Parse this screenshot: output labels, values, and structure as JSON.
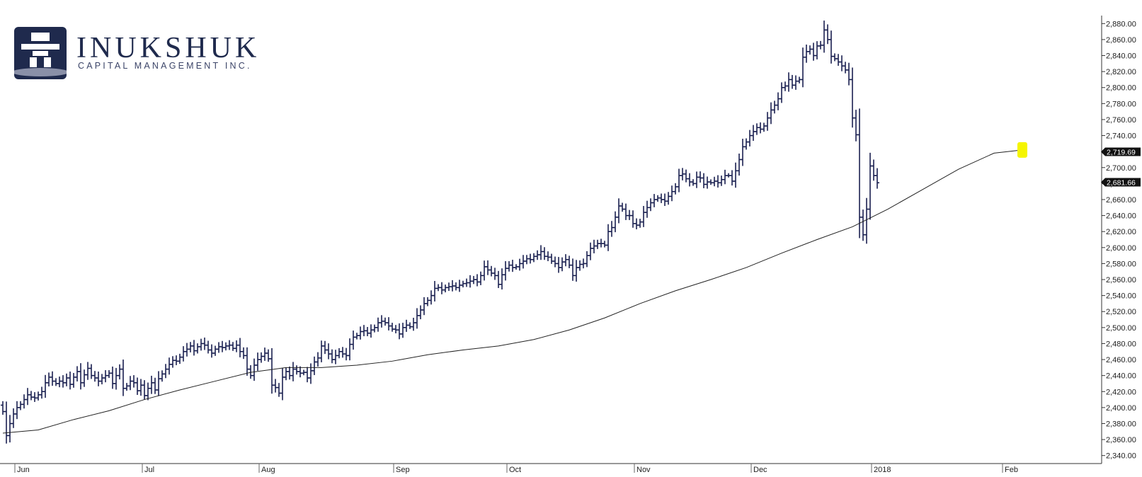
{
  "logo": {
    "name": "INUKSHUK",
    "tagline": "CAPITAL MANAGEMENT INC.",
    "brand_color": "#1f2a4d",
    "icon": "inukshuk-icon"
  },
  "chart_data": {
    "type": "ohlc",
    "title": "",
    "xlabel": "",
    "ylabel": "",
    "ylim": [
      2330,
      2890
    ],
    "y_ticks": [
      2340,
      2360,
      2380,
      2400,
      2420,
      2440,
      2460,
      2480,
      2500,
      2520,
      2540,
      2560,
      2580,
      2600,
      2620,
      2640,
      2660,
      2680,
      2700,
      2720,
      2740,
      2760,
      2780,
      2800,
      2820,
      2840,
      2860,
      2880
    ],
    "y_tick_labels": [
      "2,340.00",
      "2,360.00",
      "2,380.00",
      "2,400.00",
      "2,420.00",
      "2,440.00",
      "2,460.00",
      "2,480.00",
      "2,500.00",
      "2,520.00",
      "2,540.00",
      "2,560.00",
      "2,580.00",
      "2,600.00",
      "2,620.00",
      "2,640.00",
      "2,660.00",
      "2,680.00",
      "2,700.00",
      "2,720.00",
      "2,740.00",
      "2,760.00",
      "2,780.00",
      "2,800.00",
      "2,820.00",
      "2,840.00",
      "2,860.00",
      "2,880.00"
    ],
    "x_labels": [
      {
        "label": "Jun",
        "index": 5
      },
      {
        "label": "Jul",
        "index": 41
      },
      {
        "label": "Aug",
        "index": 74
      },
      {
        "label": "Sep",
        "index": 112
      },
      {
        "label": "Oct",
        "index": 144
      },
      {
        "label": "Nov",
        "index": 180
      },
      {
        "label": "Dec",
        "index": 213
      },
      {
        "label": "2018",
        "index": 247
      },
      {
        "label": "Feb",
        "index": 284
      }
    ],
    "last_values": [
      {
        "label": "2,719.69",
        "value": 2719.69
      },
      {
        "label": "2,681.66",
        "value": 2681.66
      }
    ],
    "bar_color": "#1a2050",
    "ma_color": "#222222",
    "highlight_color": "#f5f500",
    "grid": false,
    "closes": [
      2395,
      2365,
      2380,
      2392,
      2400,
      2404,
      2410,
      2416,
      2413,
      2412,
      2416,
      2420,
      2431,
      2438,
      2433,
      2430,
      2433,
      2431,
      2437,
      2429,
      2438,
      2445,
      2431,
      2441,
      2449,
      2440,
      2437,
      2433,
      2437,
      2440,
      2443,
      2430,
      2440,
      2448,
      2424,
      2427,
      2433,
      2431,
      2421,
      2428,
      2415,
      2424,
      2431,
      2422,
      2436,
      2442,
      2448,
      2454,
      2459,
      2458,
      2463,
      2470,
      2473,
      2477,
      2471,
      2476,
      2480,
      2478,
      2472,
      2468,
      2473,
      2476,
      2475,
      2477,
      2478,
      2474,
      2478,
      2470,
      2465,
      2448,
      2440,
      2453,
      2460,
      2464,
      2468,
      2461,
      2428,
      2425,
      2418,
      2438,
      2445,
      2440,
      2448,
      2445,
      2443,
      2444,
      2437,
      2446,
      2457,
      2462,
      2477,
      2472,
      2467,
      2460,
      2465,
      2470,
      2467,
      2465,
      2479,
      2488,
      2490,
      2495,
      2496,
      2493,
      2497,
      2500,
      2506,
      2508,
      2506,
      2502,
      2498,
      2497,
      2492,
      2500,
      2503,
      2501,
      2506,
      2515,
      2522,
      2530,
      2534,
      2540,
      2549,
      2550,
      2547,
      2550,
      2551,
      2552,
      2550,
      2553,
      2555,
      2556,
      2558,
      2560,
      2557,
      2565,
      2576,
      2572,
      2568,
      2565,
      2554,
      2566,
      2574,
      2578,
      2575,
      2576,
      2580,
      2583,
      2586,
      2585,
      2589,
      2591,
      2595,
      2589,
      2588,
      2583,
      2580,
      2575,
      2582,
      2585,
      2578,
      2565,
      2575,
      2579,
      2580,
      2590,
      2599,
      2602,
      2605,
      2605,
      2603,
      2620,
      2625,
      2638,
      2652,
      2648,
      2640,
      2640,
      2630,
      2628,
      2632,
      2644,
      2650,
      2656,
      2660,
      2662,
      2660,
      2658,
      2664,
      2670,
      2676,
      2690,
      2692,
      2686,
      2682,
      2680,
      2688,
      2687,
      2679,
      2682,
      2681,
      2683,
      2681,
      2685,
      2690,
      2690,
      2683,
      2696,
      2710,
      2726,
      2732,
      2740,
      2745,
      2750,
      2748,
      2752,
      2762,
      2772,
      2778,
      2786,
      2800,
      2802,
      2810,
      2803,
      2808,
      2810,
      2838,
      2845,
      2848,
      2840,
      2852,
      2853,
      2872,
      2860,
      2839,
      2836,
      2832,
      2827,
      2822,
      2810,
      2762,
      2741,
      2638,
      2616,
      2648,
      2702,
      2690,
      2681
    ],
    "moving_average": [
      {
        "index": 0,
        "value": 2368
      },
      {
        "index": 10,
        "value": 2372
      },
      {
        "index": 20,
        "value": 2385
      },
      {
        "index": 30,
        "value": 2396
      },
      {
        "index": 40,
        "value": 2410
      },
      {
        "index": 50,
        "value": 2422
      },
      {
        "index": 60,
        "value": 2433
      },
      {
        "index": 70,
        "value": 2444
      },
      {
        "index": 80,
        "value": 2450
      },
      {
        "index": 90,
        "value": 2450
      },
      {
        "index": 100,
        "value": 2453
      },
      {
        "index": 110,
        "value": 2458
      },
      {
        "index": 120,
        "value": 2466
      },
      {
        "index": 130,
        "value": 2472
      },
      {
        "index": 140,
        "value": 2477
      },
      {
        "index": 150,
        "value": 2485
      },
      {
        "index": 160,
        "value": 2497
      },
      {
        "index": 170,
        "value": 2512
      },
      {
        "index": 180,
        "value": 2530
      },
      {
        "index": 190,
        "value": 2546
      },
      {
        "index": 200,
        "value": 2560
      },
      {
        "index": 210,
        "value": 2575
      },
      {
        "index": 220,
        "value": 2593
      },
      {
        "index": 230,
        "value": 2610
      },
      {
        "index": 240,
        "value": 2626
      },
      {
        "index": 250,
        "value": 2648
      },
      {
        "index": 260,
        "value": 2673
      },
      {
        "index": 270,
        "value": 2698
      },
      {
        "index": 280,
        "value": 2718
      },
      {
        "index": 288,
        "value": 2722
      }
    ]
  }
}
